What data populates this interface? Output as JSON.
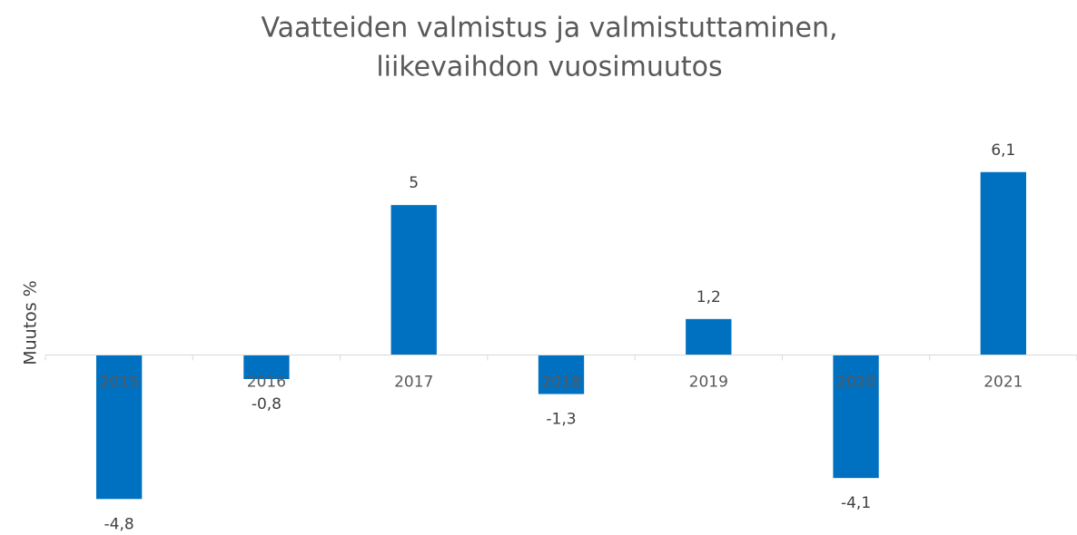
{
  "chart_data": {
    "type": "bar",
    "title": [
      "Vaatteiden valmistus ja valmistuttaminen,",
      "liikevaihdon vuosimuutos"
    ],
    "y_label": "Muutos %",
    "categories": [
      "2015",
      "2016",
      "2017",
      "2018",
      "2019",
      "2020",
      "2021"
    ],
    "values": [
      -4.8,
      -0.8,
      5,
      -1.3,
      1.2,
      -4.1,
      6.1
    ],
    "value_labels": [
      "-4,8",
      "-0,8",
      "5",
      "-1,3",
      "1,2",
      "-4,1",
      "6,1"
    ],
    "color": "#0070c0",
    "ylim": [
      -6,
      7
    ]
  }
}
